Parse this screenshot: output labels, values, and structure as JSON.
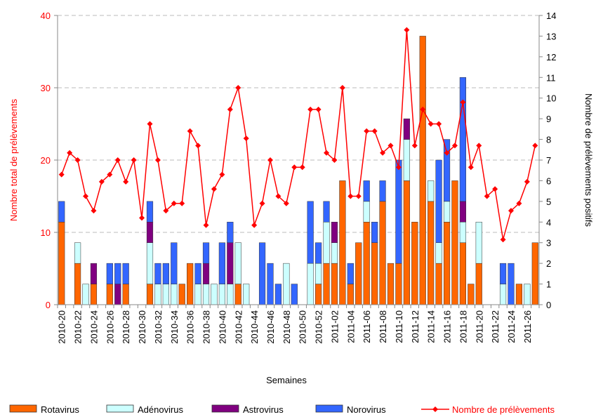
{
  "chart_data": {
    "type": "bar-line",
    "x_label": "Semaines",
    "y_label": "Nombre total de prélèvements",
    "y2_label": "Nombre de prélèvements positifs",
    "categories": [
      "2010-20",
      null,
      "2010-22",
      null,
      "2010-24",
      null,
      "2010-26",
      null,
      "2010-28",
      null,
      "2010-30",
      null,
      "2010-32",
      null,
      "2010-34",
      null,
      "2010-36",
      null,
      "2010-38",
      null,
      "2010-40",
      null,
      "2010-42",
      null,
      "2010-44",
      null,
      "2010-46",
      null,
      "2010-48",
      null,
      "2010-50",
      null,
      "2010-52",
      null,
      "2011-02",
      null,
      "2011-04",
      null,
      "2011-06",
      null,
      "2011-08",
      null,
      "2011-10",
      null,
      "2011-12",
      null,
      "2011-14",
      null,
      "2011-16",
      null,
      "2011-18",
      null,
      "2011-20",
      null,
      "2011-22",
      null,
      "2011-24",
      null,
      "2011-26",
      null
    ],
    "ylim": [
      0,
      40
    ],
    "yticks": [
      0,
      10,
      20,
      30,
      40
    ],
    "y2lim": [
      0,
      14
    ],
    "y2ticks": [
      0,
      1,
      2,
      3,
      4,
      5,
      6,
      7,
      8,
      9,
      10,
      11,
      12,
      13,
      14
    ],
    "grid": true,
    "series": [
      {
        "name": "Rotavirus",
        "color": "#ff6600",
        "axis": "y2",
        "kind": "bar",
        "values": [
          4,
          null,
          2,
          null,
          1,
          null,
          1,
          null,
          1,
          null,
          null,
          1,
          null,
          null,
          null,
          1,
          2,
          null,
          null,
          null,
          null,
          null,
          1,
          null,
          null,
          null,
          null,
          null,
          null,
          null,
          null,
          null,
          1,
          2,
          2,
          6,
          1,
          3,
          4,
          3,
          5,
          2,
          2,
          6,
          4,
          13,
          5,
          2,
          4,
          6,
          3,
          1,
          2,
          null,
          null,
          null,
          null,
          1,
          null,
          3
        ]
      },
      {
        "name": "Adénovirus",
        "color": "#ccffff",
        "axis": "y2",
        "kind": "bar",
        "values": [
          null,
          null,
          1,
          1,
          null,
          null,
          null,
          null,
          null,
          null,
          null,
          2,
          1,
          1,
          1,
          null,
          null,
          1,
          1,
          1,
          1,
          1,
          2,
          1,
          null,
          null,
          null,
          null,
          2,
          null,
          null,
          2,
          1,
          2,
          1,
          null,
          null,
          null,
          1,
          null,
          null,
          null,
          null,
          2,
          null,
          null,
          1,
          1,
          1,
          null,
          1,
          null,
          2,
          null,
          null,
          1,
          null,
          null,
          1,
          null
        ]
      },
      {
        "name": "Astrovirus",
        "color": "#800080",
        "axis": "y2",
        "kind": "bar",
        "values": [
          null,
          null,
          null,
          null,
          1,
          null,
          null,
          1,
          null,
          null,
          null,
          1,
          null,
          null,
          null,
          null,
          null,
          null,
          1,
          null,
          null,
          2,
          null,
          null,
          null,
          null,
          null,
          null,
          null,
          null,
          null,
          null,
          null,
          null,
          1,
          null,
          null,
          null,
          null,
          null,
          null,
          null,
          null,
          1,
          null,
          null,
          null,
          null,
          null,
          null,
          1,
          null,
          null,
          null,
          null,
          null,
          null,
          null,
          null,
          null
        ]
      },
      {
        "name": "Norovirus",
        "color": "#3366ff",
        "axis": "y2",
        "kind": "bar",
        "values": [
          1,
          null,
          null,
          null,
          null,
          null,
          1,
          1,
          1,
          null,
          null,
          1,
          1,
          1,
          2,
          null,
          null,
          1,
          1,
          null,
          2,
          1,
          null,
          null,
          null,
          3,
          2,
          1,
          null,
          1,
          null,
          3,
          1,
          1,
          null,
          null,
          1,
          null,
          1,
          1,
          1,
          null,
          5,
          null,
          null,
          null,
          null,
          4,
          3,
          null,
          6,
          null,
          null,
          null,
          null,
          1,
          2,
          null,
          null,
          null
        ]
      },
      {
        "name": "Nombre de prélèvements",
        "color": "#ff0000",
        "axis": "y",
        "kind": "line",
        "values": [
          18,
          21,
          20,
          15,
          13,
          17,
          18,
          20,
          17,
          20,
          12,
          25,
          20,
          13,
          14,
          14,
          24,
          22,
          11,
          16,
          18,
          27,
          30,
          23,
          11,
          14,
          20,
          15,
          14,
          19,
          19,
          27,
          27,
          21,
          20,
          30,
          15,
          15,
          24,
          24,
          21,
          22,
          19,
          38,
          22,
          27,
          25,
          25,
          21,
          22,
          28,
          19,
          22,
          15,
          16,
          9,
          13,
          14,
          17,
          22
        ]
      }
    ]
  }
}
